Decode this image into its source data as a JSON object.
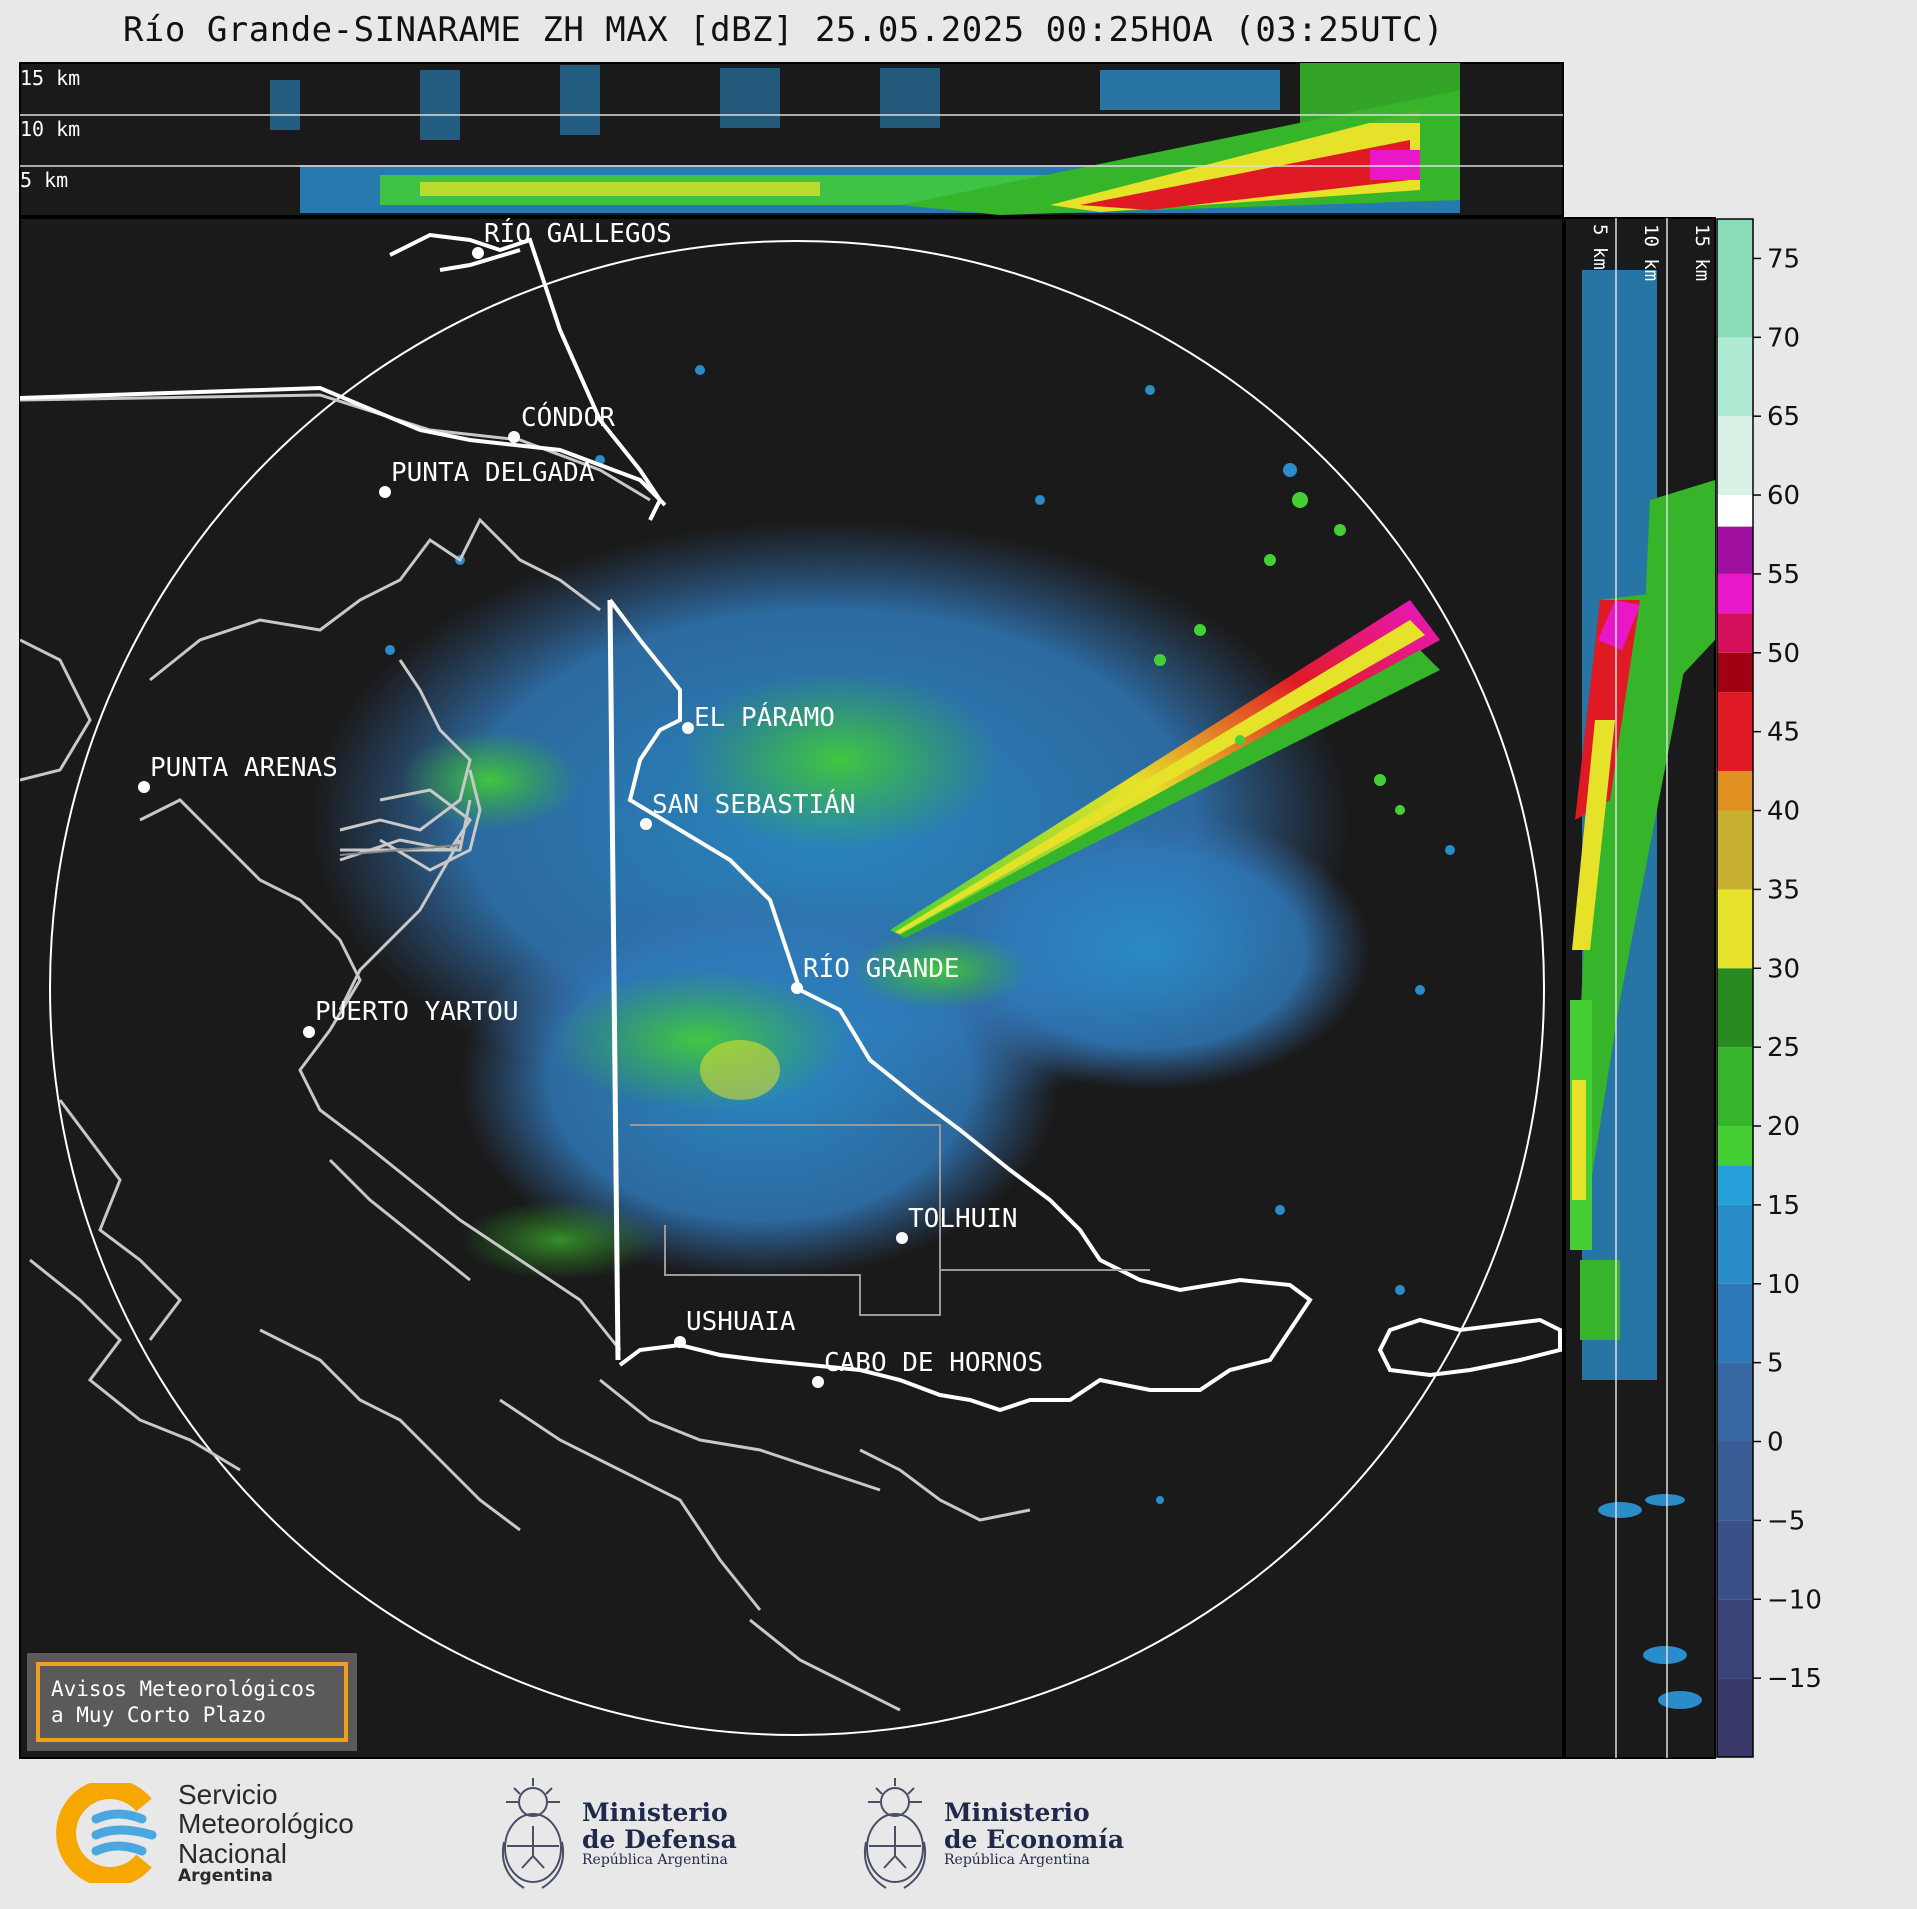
{
  "title": "Río Grande-SINARAME ZH MAX [dBZ] 25.05.2025 00:25HOA (03:25UTC)",
  "top_panel": {
    "height_labels": [
      "15 km",
      "10 km",
      "5 km"
    ]
  },
  "side_panel": {
    "height_labels": [
      "5 km",
      "10 km",
      "15 km"
    ]
  },
  "cities": [
    {
      "name": "RÍO GALLEGOS"
    },
    {
      "name": "CÓNDOR"
    },
    {
      "name": "PUNTA DELGADA"
    },
    {
      "name": "PUNTA ARENAS"
    },
    {
      "name": "EL PÁRAMO"
    },
    {
      "name": "SAN SEBASTIÁN"
    },
    {
      "name": "RÍO GRANDE"
    },
    {
      "name": "PUERTO YARTOU"
    },
    {
      "name": "TOLHUIN"
    },
    {
      "name": "USHUAIA"
    },
    {
      "name": "CABO DE HORNOS"
    }
  ],
  "notice": {
    "line1": "Avisos Meteorológicos",
    "line2": "a Muy Corto Plazo"
  },
  "colorbar": {
    "unit": "dBZ",
    "range": [
      -20,
      77.5
    ],
    "ticks": [
      "75",
      "70",
      "65",
      "60",
      "55",
      "50",
      "45",
      "40",
      "35",
      "30",
      "25",
      "20",
      "15",
      "10",
      "5",
      "0",
      "−5",
      "−10",
      "−15"
    ],
    "tick_values": [
      75,
      70,
      65,
      60,
      55,
      50,
      45,
      40,
      35,
      30,
      25,
      20,
      15,
      10,
      5,
      0,
      -5,
      -10,
      -15
    ],
    "stops": [
      {
        "from": -20,
        "to": -15,
        "color": "#3a3a6a"
      },
      {
        "from": -15,
        "to": -10,
        "color": "#3b4478"
      },
      {
        "from": -10,
        "to": -5,
        "color": "#3b5088"
      },
      {
        "from": -5,
        "to": 0,
        "color": "#3a5c95"
      },
      {
        "from": 0,
        "to": 5,
        "color": "#3768a4"
      },
      {
        "from": 5,
        "to": 10,
        "color": "#2f78b8"
      },
      {
        "from": 10,
        "to": 15,
        "color": "#2a8cc8"
      },
      {
        "from": 15,
        "to": 17.5,
        "color": "#26a0d8"
      },
      {
        "from": 17.5,
        "to": 20,
        "color": "#44d034"
      },
      {
        "from": 20,
        "to": 25,
        "color": "#36b42a"
      },
      {
        "from": 25,
        "to": 30,
        "color": "#2a8a22"
      },
      {
        "from": 30,
        "to": 35,
        "color": "#e6e22a"
      },
      {
        "from": 35,
        "to": 40,
        "color": "#c8b030"
      },
      {
        "from": 40,
        "to": 42.5,
        "color": "#e09020"
      },
      {
        "from": 42.5,
        "to": 47.5,
        "color": "#e01a24"
      },
      {
        "from": 47.5,
        "to": 50,
        "color": "#a00010"
      },
      {
        "from": 50,
        "to": 52.5,
        "color": "#d4105a"
      },
      {
        "from": 52.5,
        "to": 55,
        "color": "#e818c8"
      },
      {
        "from": 55,
        "to": 58,
        "color": "#a010a0"
      },
      {
        "from": 58,
        "to": 60,
        "color": "#ffffff"
      },
      {
        "from": 60,
        "to": 65,
        "color": "#d8f2e6"
      },
      {
        "from": 65,
        "to": 70,
        "color": "#b0ead2"
      },
      {
        "from": 70,
        "to": 77.5,
        "color": "#88dcb8"
      }
    ]
  },
  "logos": {
    "smn": {
      "line1": "Servicio",
      "line2": "Meteorológico",
      "line3": "Nacional",
      "sub": "Argentina",
      "icon": "smn-logo-icon"
    },
    "defensa": {
      "line1": "Ministerio",
      "line2": "de Defensa",
      "sub": "República Argentina",
      "icon": "coat-of-arms-icon"
    },
    "economia": {
      "line1": "Ministerio",
      "line2": "de Economía",
      "sub": "República Argentina",
      "icon": "coat-of-arms-icon"
    }
  },
  "colors": {
    "background": "#1a1a1a",
    "page": "#e8e8e8",
    "notice_border": "#f0a020"
  }
}
